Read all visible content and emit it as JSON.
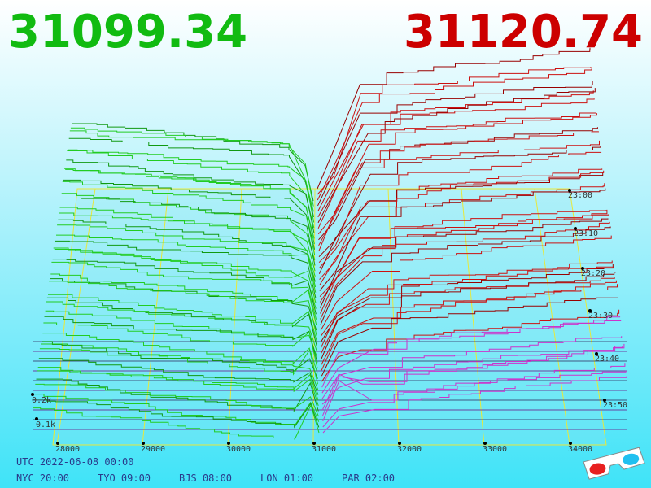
{
  "header": {
    "bid": "31099.34",
    "ask": "31120.74"
  },
  "axes": {
    "price_labels": [
      "28000",
      "29000",
      "30000",
      "31000",
      "32000",
      "33000",
      "34000"
    ],
    "time_labels": [
      "23:00",
      "23:10",
      "23:20",
      "23:30",
      "23:40",
      "23:50"
    ],
    "depth_labels": [
      "0.2k",
      "0.1k"
    ]
  },
  "footer": {
    "utc": "UTC 2022-06-08 00:00",
    "zones": [
      "NYC 20:00",
      "TYO 09:00",
      "BJS 08:00",
      "LON 01:00",
      "PAR 02:00"
    ]
  }
}
